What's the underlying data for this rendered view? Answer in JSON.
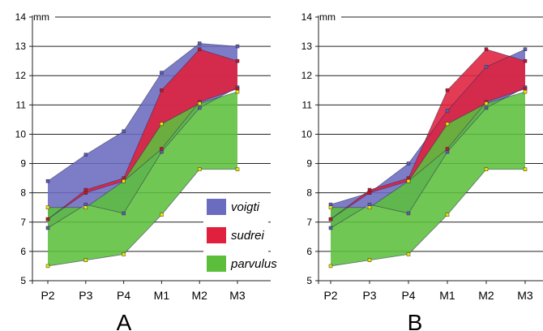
{
  "chart_data": [
    {
      "type": "area",
      "panel_label": "A",
      "ylabel": "mm",
      "ylim": [
        5,
        14
      ],
      "yticks": [
        "5",
        "6",
        "7",
        "8",
        "9",
        "10",
        "11",
        "12",
        "13",
        "14"
      ],
      "categories": [
        "P2",
        "P3",
        "P4",
        "M1",
        "M2",
        "M3"
      ],
      "grid": true,
      "legend_position": "center-right",
      "series": [
        {
          "name": "voigti",
          "color": "#6b6bbf",
          "marker_color": "#5a5ab8",
          "upper": [
            8.4,
            9.3,
            10.1,
            12.1,
            13.1,
            13.0
          ],
          "lower": [
            6.8,
            7.6,
            7.3,
            9.4,
            10.9,
            11.6
          ]
        },
        {
          "name": "sudrei",
          "color": "#e0203c",
          "marker_color": "#c8102e",
          "upper": [
            7.1,
            8.1,
            8.5,
            11.5,
            12.9,
            12.5
          ],
          "lower": [
            7.1,
            8.0,
            8.4,
            9.5,
            11.1,
            11.55
          ]
        },
        {
          "name": "parvulus",
          "color": "#5cbf3c",
          "marker_color": "#f2e600",
          "upper": [
            7.5,
            7.5,
            8.4,
            10.35,
            11.05,
            11.45
          ],
          "lower": [
            5.5,
            5.7,
            5.9,
            7.25,
            8.8,
            8.8
          ]
        }
      ]
    },
    {
      "type": "area",
      "panel_label": "B",
      "ylabel": "mm",
      "ylim": [
        5,
        14
      ],
      "yticks": [
        "5",
        "6",
        "7",
        "8",
        "9",
        "10",
        "11",
        "12",
        "13",
        "14"
      ],
      "categories": [
        "P2",
        "P3",
        "P4",
        "M1",
        "M2",
        "M3"
      ],
      "grid": true,
      "series": [
        {
          "name": "voigti",
          "color": "#6b6bbf",
          "marker_color": "#5a5ab8",
          "upper": [
            7.6,
            8.0,
            9.0,
            10.8,
            12.3,
            12.9
          ],
          "lower": [
            6.8,
            7.6,
            7.3,
            9.4,
            10.9,
            11.6
          ]
        },
        {
          "name": "sudrei",
          "color": "#e0203c",
          "marker_color": "#c8102e",
          "upper": [
            7.1,
            8.1,
            8.5,
            11.5,
            12.9,
            12.5
          ],
          "lower": [
            7.1,
            8.0,
            8.4,
            9.5,
            11.1,
            11.55
          ]
        },
        {
          "name": "parvulus",
          "color": "#5cbf3c",
          "marker_color": "#f2e600",
          "upper": [
            7.5,
            7.5,
            8.4,
            10.35,
            11.05,
            11.45
          ],
          "lower": [
            5.5,
            5.7,
            5.9,
            7.25,
            8.8,
            8.8
          ]
        }
      ]
    }
  ],
  "legend": {
    "items": [
      {
        "name": "voigti",
        "color": "#6b6bbf"
      },
      {
        "name": "sudrei",
        "color": "#e0203c"
      },
      {
        "name": "parvulus",
        "color": "#5cbf3c"
      }
    ]
  }
}
